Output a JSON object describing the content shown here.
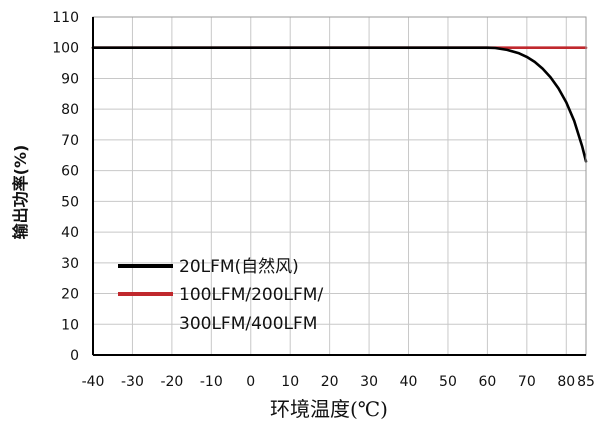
{
  "chart_data": {
    "type": "line",
    "xlabel": "环境温度(℃)",
    "ylabel": "输出功率(%)",
    "xlim": [
      -40,
      85
    ],
    "ylim": [
      0,
      110
    ],
    "x_ticks": [
      -40,
      -30,
      -20,
      -10,
      0,
      10,
      20,
      30,
      40,
      50,
      60,
      70,
      80,
      85
    ],
    "y_ticks": [
      0,
      10,
      20,
      30,
      40,
      50,
      60,
      70,
      80,
      90,
      100,
      110
    ],
    "grid": true,
    "legend_position": "bottom-left",
    "series": [
      {
        "name": "20LFM(自然风)",
        "color": "#000000",
        "x": [
          -40,
          60,
          62,
          65,
          68,
          70,
          72,
          74,
          76,
          78,
          80,
          82,
          84,
          85
        ],
        "y": [
          100,
          100,
          99.9,
          99.3,
          98.2,
          97,
          95.4,
          93.2,
          90.4,
          86.8,
          82.2,
          76.2,
          68,
          63
        ]
      },
      {
        "name": "100LFM/200LFM/300LFM/400LFM",
        "name_lines": [
          "100LFM/200LFM/",
          "300LFM/400LFM"
        ],
        "color": "#c0282d",
        "x": [
          -40,
          85
        ],
        "y": [
          100,
          100
        ]
      }
    ]
  }
}
